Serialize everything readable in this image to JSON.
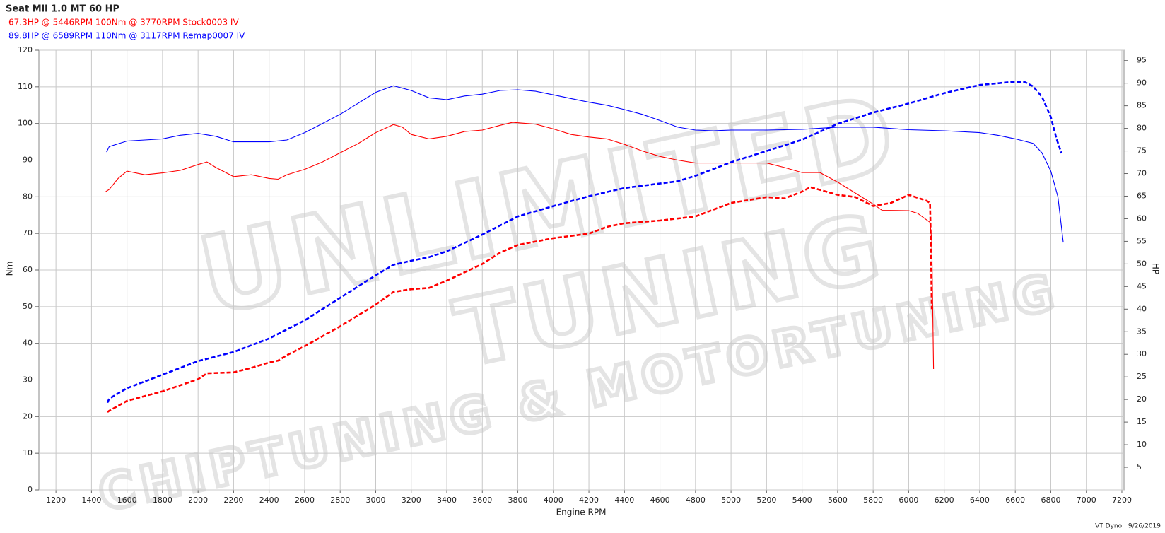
{
  "chart_data": {
    "type": "line",
    "title": "Seat Mii 1.0 MT 60 HP",
    "legend_lines": [
      {
        "text": "67.3HP @  5446RPM  100Nm @ 3770RPM  Stock0003 IV",
        "color": "#ff0000"
      },
      {
        "text": "89.8HP @  6589RPM  110Nm @ 3117RPM  Remap0007 IV",
        "color": "#0000ff"
      }
    ],
    "x_label": "Engine RPM",
    "y_label": "Nm",
    "y2_label": "HP",
    "footer": "VT Dyno | 9/26/2019",
    "watermark": [
      "UNLIMITED",
      "TUNING",
      "CHIPTUNING & MOTORTUNING"
    ],
    "grid": true,
    "xlim": [
      1104,
      7212
    ],
    "xticks": [
      1200,
      1400,
      1600,
      1800,
      2000,
      2200,
      2400,
      2600,
      2800,
      3000,
      3200,
      3400,
      3600,
      3800,
      4000,
      4200,
      4400,
      4600,
      4800,
      5000,
      5200,
      5400,
      5600,
      5800,
      6000,
      6200,
      6400,
      6600,
      6800,
      7000,
      7200
    ],
    "ylim": [
      0,
      120
    ],
    "yticks": [
      0,
      10,
      20,
      30,
      40,
      50,
      60,
      70,
      80,
      90,
      100,
      110,
      120
    ],
    "y2lim": [
      0,
      97.3
    ],
    "y2ticks": [
      5,
      10,
      15,
      20,
      25,
      30,
      35,
      40,
      45,
      50,
      55,
      60,
      65,
      70,
      75,
      80,
      85,
      90,
      95
    ],
    "series": [
      {
        "color": "#ff0000",
        "style": "solid",
        "axis": "y",
        "x": [
          1480,
          1500,
          1550,
          1600,
          1700,
          1800,
          1900,
          2000,
          2050,
          2100,
          2200,
          2300,
          2400,
          2450,
          2500,
          2600,
          2700,
          2800,
          2900,
          3000,
          3100,
          3150,
          3200,
          3300,
          3400,
          3500,
          3600,
          3700,
          3770,
          3900,
          4000,
          4100,
          4200,
          4300,
          4400,
          4500,
          4600,
          4700,
          4800,
          5000,
          5200,
          5300,
          5400,
          5500,
          5600,
          5700,
          5800,
          5850,
          6000,
          6050,
          6120,
          6130,
          6140
        ],
        "values": [
          81.4,
          82,
          85,
          87,
          86,
          86.5,
          87.2,
          88.8,
          89.5,
          88,
          85.5,
          86,
          85,
          84.8,
          86,
          87.5,
          89.5,
          92,
          94.5,
          97.5,
          99.7,
          99,
          97,
          95.8,
          96.5,
          97.8,
          98.2,
          99.5,
          100.3,
          99.8,
          98.5,
          97,
          96.3,
          95.8,
          94.3,
          92.5,
          91,
          90,
          89.2,
          89.2,
          89.2,
          88,
          86.6,
          86.6,
          84,
          81,
          78,
          76.3,
          76.2,
          75.5,
          73,
          68,
          33
        ]
      },
      {
        "color": "#ff0000",
        "style": "dashed",
        "axis": "y2",
        "x": [
          1490,
          1500,
          1600,
          1800,
          2000,
          2050,
          2200,
          2300,
          2400,
          2450,
          2500,
          2600,
          2800,
          3000,
          3100,
          3200,
          3300,
          3400,
          3600,
          3700,
          3800,
          4000,
          4200,
          4300,
          4400,
          4600,
          4800,
          5000,
          5200,
          5300,
          5400,
          5446,
          5600,
          5700,
          5800,
          5900,
          6000,
          6100,
          6120,
          6125,
          6130
        ],
        "values": [
          17.2,
          17.5,
          19.7,
          21.8,
          24.5,
          25.8,
          26,
          27,
          28.2,
          28.6,
          29.8,
          31.8,
          36.2,
          41,
          43.8,
          44.4,
          44.7,
          46.3,
          50,
          52.5,
          54.2,
          55.7,
          56.7,
          58.2,
          59,
          59.6,
          60.5,
          63.5,
          64.8,
          64.5,
          66,
          67,
          65.3,
          64.8,
          62.8,
          63.5,
          65.3,
          64,
          63.5,
          55,
          40
        ]
      },
      {
        "color": "#0000ff",
        "style": "solid",
        "axis": "y",
        "x": [
          1485,
          1500,
          1600,
          1700,
          1800,
          1900,
          2000,
          2100,
          2200,
          2300,
          2400,
          2500,
          2600,
          2700,
          2800,
          2900,
          3000,
          3100,
          3200,
          3300,
          3400,
          3500,
          3600,
          3700,
          3800,
          3900,
          4000,
          4100,
          4200,
          4300,
          4400,
          4500,
          4600,
          4700,
          4800,
          4900,
          5000,
          5200,
          5400,
          5600,
          5800,
          6000,
          6200,
          6400,
          6500,
          6600,
          6700,
          6750,
          6800,
          6840,
          6870
        ],
        "values": [
          92.2,
          93.7,
          95.2,
          95.5,
          95.8,
          96.8,
          97.3,
          96.5,
          95,
          95,
          95,
          95.5,
          97.5,
          100,
          102.5,
          105.5,
          108.5,
          110.3,
          109,
          107,
          106.5,
          107.5,
          108,
          109,
          109.2,
          108.8,
          107.8,
          106.8,
          105.8,
          105,
          103.8,
          102.5,
          100.8,
          99,
          98.2,
          98,
          98.2,
          98.2,
          98.4,
          99,
          99,
          98.3,
          98,
          97.5,
          96.8,
          95.8,
          94.6,
          92,
          87,
          80,
          67.5
        ]
      },
      {
        "color": "#0000ff",
        "style": "dashed",
        "axis": "y2",
        "x": [
          1490,
          1500,
          1600,
          1800,
          2000,
          2100,
          2200,
          2400,
          2600,
          2800,
          3000,
          3100,
          3200,
          3300,
          3400,
          3600,
          3800,
          4000,
          4200,
          4400,
          4600,
          4700,
          4800,
          5000,
          5200,
          5400,
          5600,
          5800,
          6000,
          6200,
          6400,
          6589,
          6650,
          6700,
          6750,
          6800,
          6830,
          6860
        ],
        "values": [
          19.3,
          20.2,
          22.5,
          25.5,
          28.5,
          29.5,
          30.5,
          33.5,
          37.5,
          42.5,
          47.5,
          49.8,
          50.7,
          51.5,
          52.8,
          56.5,
          60.5,
          62.8,
          65,
          66.8,
          67.8,
          68.3,
          69.5,
          72.5,
          75,
          77.5,
          81,
          83.5,
          85.5,
          87.8,
          89.6,
          90.3,
          90.3,
          89.3,
          87,
          82.5,
          78,
          74.5
        ]
      }
    ]
  }
}
